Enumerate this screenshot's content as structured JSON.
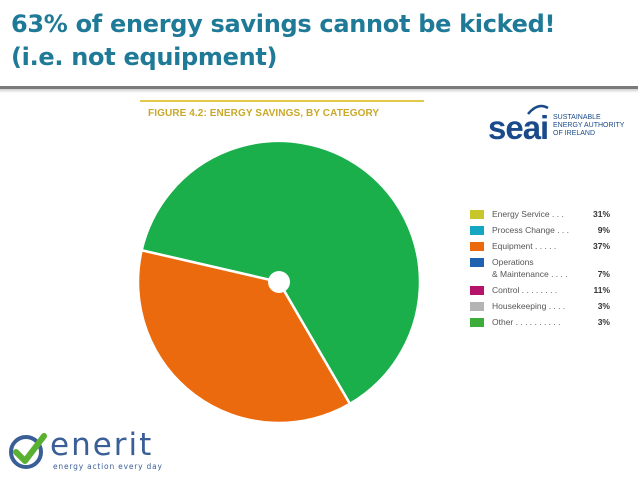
{
  "slide": {
    "title_line1": "63% of energy savings cannot be kicked!",
    "title_line2": "(i.e. not equipment)"
  },
  "figure_title": "FIGURE 4.2: ENERGY SAVINGS, BY CATEGORY",
  "seai_logo": {
    "word": "seai",
    "line1": "SUSTAINABLE",
    "line2": "ENERGY AUTHORITY",
    "line3": "OF IRELAND"
  },
  "enerit_logo": {
    "word": "enerit",
    "tagline": "energy action every day",
    "icon": "checkmark-circle-icon"
  },
  "chart_data": {
    "type": "pie",
    "title": "FIGURE 4.2: ENERGY SAVINGS, BY CATEGORY",
    "legend_position": "right",
    "slices_drawn": [
      {
        "name": "Other",
        "value": 63,
        "color": "#1aaf4b"
      },
      {
        "name": "Equipment",
        "value": 37,
        "color": "#eb6a0d"
      }
    ],
    "legend": [
      {
        "label": "Energy Service . . . ",
        "value": "31%",
        "color": "#c7c62a"
      },
      {
        "label": "Process Change . . . ",
        "value": "9%",
        "color": "#15a6c2"
      },
      {
        "label": "Equipment . . . . . ",
        "value": "37%",
        "color": "#eb6a0d"
      },
      {
        "label": "Operations",
        "label2": "& Maintenance . . . . ",
        "value": "7%",
        "color": "#1f62b0"
      },
      {
        "label": "Control . . . . . . . . ",
        "value": "11%",
        "color": "#b5126a"
      },
      {
        "label": "Housekeeping . . . . ",
        "value": "3%",
        "color": "#b4b4b4"
      },
      {
        "label": "Other . . . . . . . . . . ",
        "value": "3%",
        "color": "#3dac3a"
      }
    ]
  }
}
